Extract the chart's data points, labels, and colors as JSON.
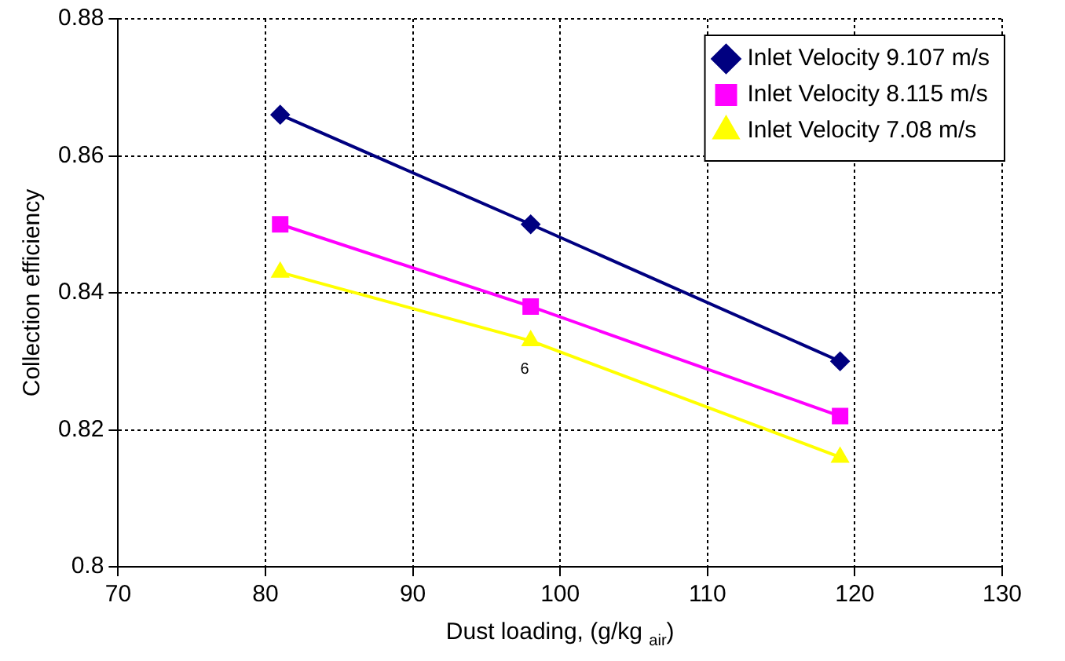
{
  "chart_data": {
    "type": "line",
    "xlabel": "Dust loading, (g/kg $_{air}$)",
    "ylabel": "Collection efficiency",
    "x": [
      81,
      98,
      119
    ],
    "series": [
      {
        "name": "Inlet Velocity 9.107 m/s",
        "color": "#000080",
        "marker": "diamond",
        "values": [
          0.866,
          0.85,
          0.83
        ]
      },
      {
        "name": "Inlet Velocity 8.115 m/s",
        "color": "#ff00ff",
        "marker": "square",
        "values": [
          0.85,
          0.838,
          0.822
        ]
      },
      {
        "name": "Inlet Velocity 7.08 m/s",
        "color": "#ffff00",
        "marker": "triangle",
        "values": [
          0.843,
          0.833,
          0.816
        ]
      }
    ],
    "annotations": [
      "6"
    ],
    "xlim": [
      70,
      130
    ],
    "xticks": [
      70,
      80,
      90,
      100,
      110,
      120,
      130
    ],
    "ylim": [
      0.8,
      0.88
    ],
    "yticks": [
      0.8,
      0.82,
      0.84,
      0.86,
      0.88
    ],
    "grid": true,
    "legend": "top right",
    "line_style": "solid"
  }
}
